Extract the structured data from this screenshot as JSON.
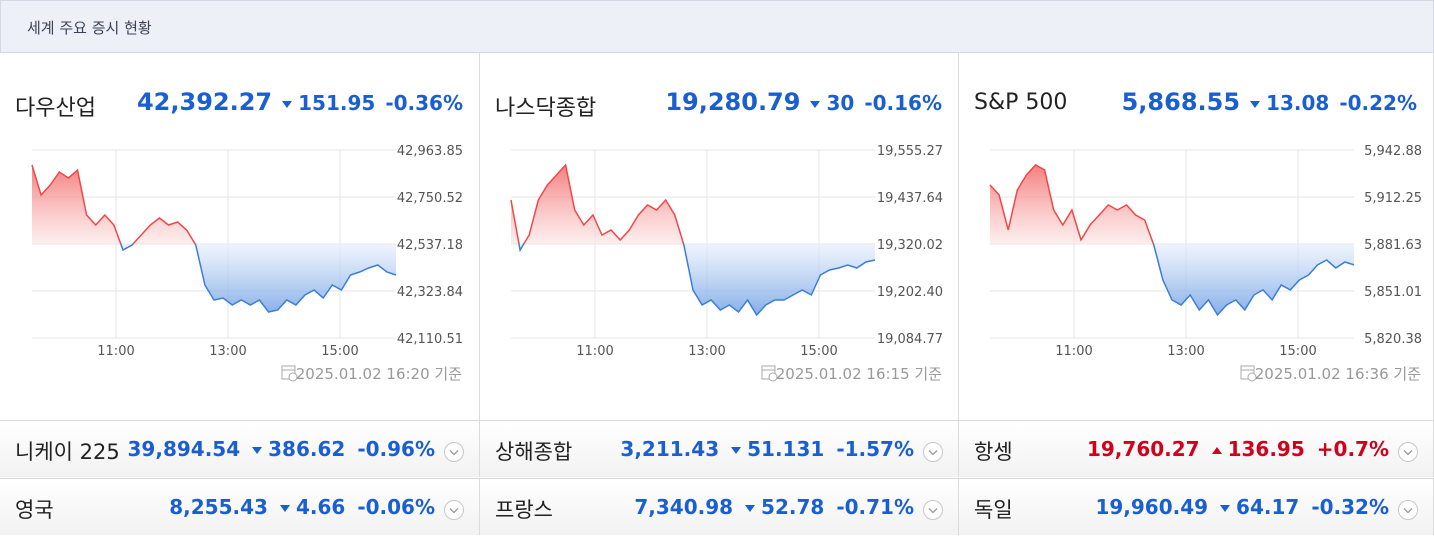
{
  "header": {
    "title": "세계 주요 증시 현황"
  },
  "colors": {
    "up": "#d0021b",
    "down": "#1a5fd1",
    "up_line": "#f04848",
    "down_line": "#3b7ddb"
  },
  "panels": [
    {
      "name": "다우산업",
      "value": "42,392.27",
      "change": "151.95",
      "change_pct": "-0.36%",
      "direction": "down",
      "timestamp": "2025.01.02 16:20 기준",
      "chart": {
        "type": "line",
        "xlim": [
          "09:30",
          "16:00"
        ],
        "xticks": [
          "11:00",
          "13:00",
          "15:00"
        ],
        "ylim": [
          42110.51,
          42963.85
        ],
        "yticks": [
          {
            "value": 42963.85,
            "label": "42,963.85"
          },
          {
            "value": 42750.52,
            "label": "42,750.52"
          },
          {
            "value": 42537.18,
            "label": "42,537.18"
          },
          {
            "value": 42323.84,
            "label": "42,323.84"
          },
          {
            "value": 42110.51,
            "label": "42,110.51"
          }
        ],
        "values": [
          42895.8,
          42759.6,
          42805.0,
          42864.0,
          42836.8,
          42873.1,
          42668.8,
          42623.4,
          42668.8,
          42623.4,
          42509.9,
          42532.6,
          42578.0,
          42623.4,
          42655.2,
          42623.4,
          42637.0,
          42600.7,
          42532.6,
          42351.1,
          42283.0,
          42292.1,
          42260.3,
          42283.0,
          42260.3,
          42283.0,
          42228.5,
          42237.6,
          42283.0,
          42260.3,
          42305.7,
          42328.4,
          42292.1,
          42351.1,
          42328.4,
          42396.5,
          42410.1,
          42428.3,
          42441.9,
          42410.1,
          42396.5
        ]
      }
    },
    {
      "name": "나스닥종합",
      "value": "19,280.79",
      "change": "30",
      "change_pct": "-0.16%",
      "direction": "down",
      "timestamp": "2025.01.02 16:15 기준",
      "chart": {
        "type": "line",
        "xlim": [
          "09:30",
          "16:00"
        ],
        "xticks": [
          "11:00",
          "13:00",
          "15:00"
        ],
        "ylim": [
          19084.77,
          19555.27
        ],
        "yticks": [
          {
            "value": 19555.27,
            "label": "19,555.27"
          },
          {
            "value": 19437.64,
            "label": "19,437.64"
          },
          {
            "value": 19320.02,
            "label": "19,320.02"
          },
          {
            "value": 19202.4,
            "label": "19,202.40"
          },
          {
            "value": 19084.77,
            "label": "19,084.77"
          }
        ],
        "values": [
          19430.1,
          19305.0,
          19342.5,
          19430.1,
          19467.7,
          19492.7,
          19517.8,
          19405.1,
          19367.6,
          19392.6,
          19342.5,
          19355.1,
          19330.0,
          19355.1,
          19392.6,
          19417.6,
          19405.1,
          19430.1,
          19392.6,
          19317.5,
          19204.9,
          19167.3,
          19179.8,
          19154.8,
          19167.3,
          19149.8,
          19179.8,
          19142.3,
          19167.3,
          19179.8,
          19179.8,
          19192.4,
          19204.9,
          19192.4,
          19242.4,
          19254.9,
          19259.9,
          19267.5,
          19259.9,
          19275.0,
          19280.0
        ]
      }
    },
    {
      "name": "S&P 500",
      "value": "5,868.55",
      "change": "13.08",
      "change_pct": "-0.22%",
      "direction": "down",
      "timestamp": "2025.01.02 16:36 기준",
      "chart": {
        "type": "line",
        "xlim": [
          "09:30",
          "16:00"
        ],
        "xticks": [
          "11:00",
          "13:00",
          "15:00"
        ],
        "ylim": [
          5820.38,
          5942.88
        ],
        "yticks": [
          {
            "value": 5942.88,
            "label": "5,942.88"
          },
          {
            "value": 5912.25,
            "label": "5,912.25"
          },
          {
            "value": 5881.63,
            "label": "5,881.63"
          },
          {
            "value": 5851.01,
            "label": "5,851.01"
          },
          {
            "value": 5820.38,
            "label": "5,820.38"
          }
        ],
        "values": [
          5920.1,
          5913.6,
          5890.8,
          5916.8,
          5926.6,
          5933.1,
          5929.9,
          5903.8,
          5894.0,
          5903.8,
          5884.3,
          5894.0,
          5900.5,
          5907.1,
          5903.8,
          5907.1,
          5900.5,
          5897.3,
          5881.0,
          5858.2,
          5845.2,
          5841.9,
          5848.4,
          5838.6,
          5845.2,
          5835.4,
          5841.9,
          5845.2,
          5838.6,
          5848.4,
          5851.7,
          5845.2,
          5854.9,
          5851.7,
          5858.2,
          5861.4,
          5868.0,
          5871.2,
          5866.0,
          5869.9,
          5868.0
        ]
      }
    }
  ],
  "rows": [
    [
      {
        "name": "니케이 225",
        "value": "39,894.54",
        "change": "386.62",
        "change_pct": "-0.96%",
        "direction": "down"
      },
      {
        "name": "상해종합",
        "value": "3,211.43",
        "change": "51.131",
        "change_pct": "-1.57%",
        "direction": "down"
      },
      {
        "name": "항셍",
        "value": "19,760.27",
        "change": "136.95",
        "change_pct": "+0.7%",
        "direction": "up"
      }
    ],
    [
      {
        "name": "영국",
        "value": "8,255.43",
        "change": "4.66",
        "change_pct": "-0.06%",
        "direction": "down"
      },
      {
        "name": "프랑스",
        "value": "7,340.98",
        "change": "52.78",
        "change_pct": "-0.71%",
        "direction": "down"
      },
      {
        "name": "독일",
        "value": "19,960.49",
        "change": "64.17",
        "change_pct": "-0.32%",
        "direction": "down"
      }
    ]
  ]
}
